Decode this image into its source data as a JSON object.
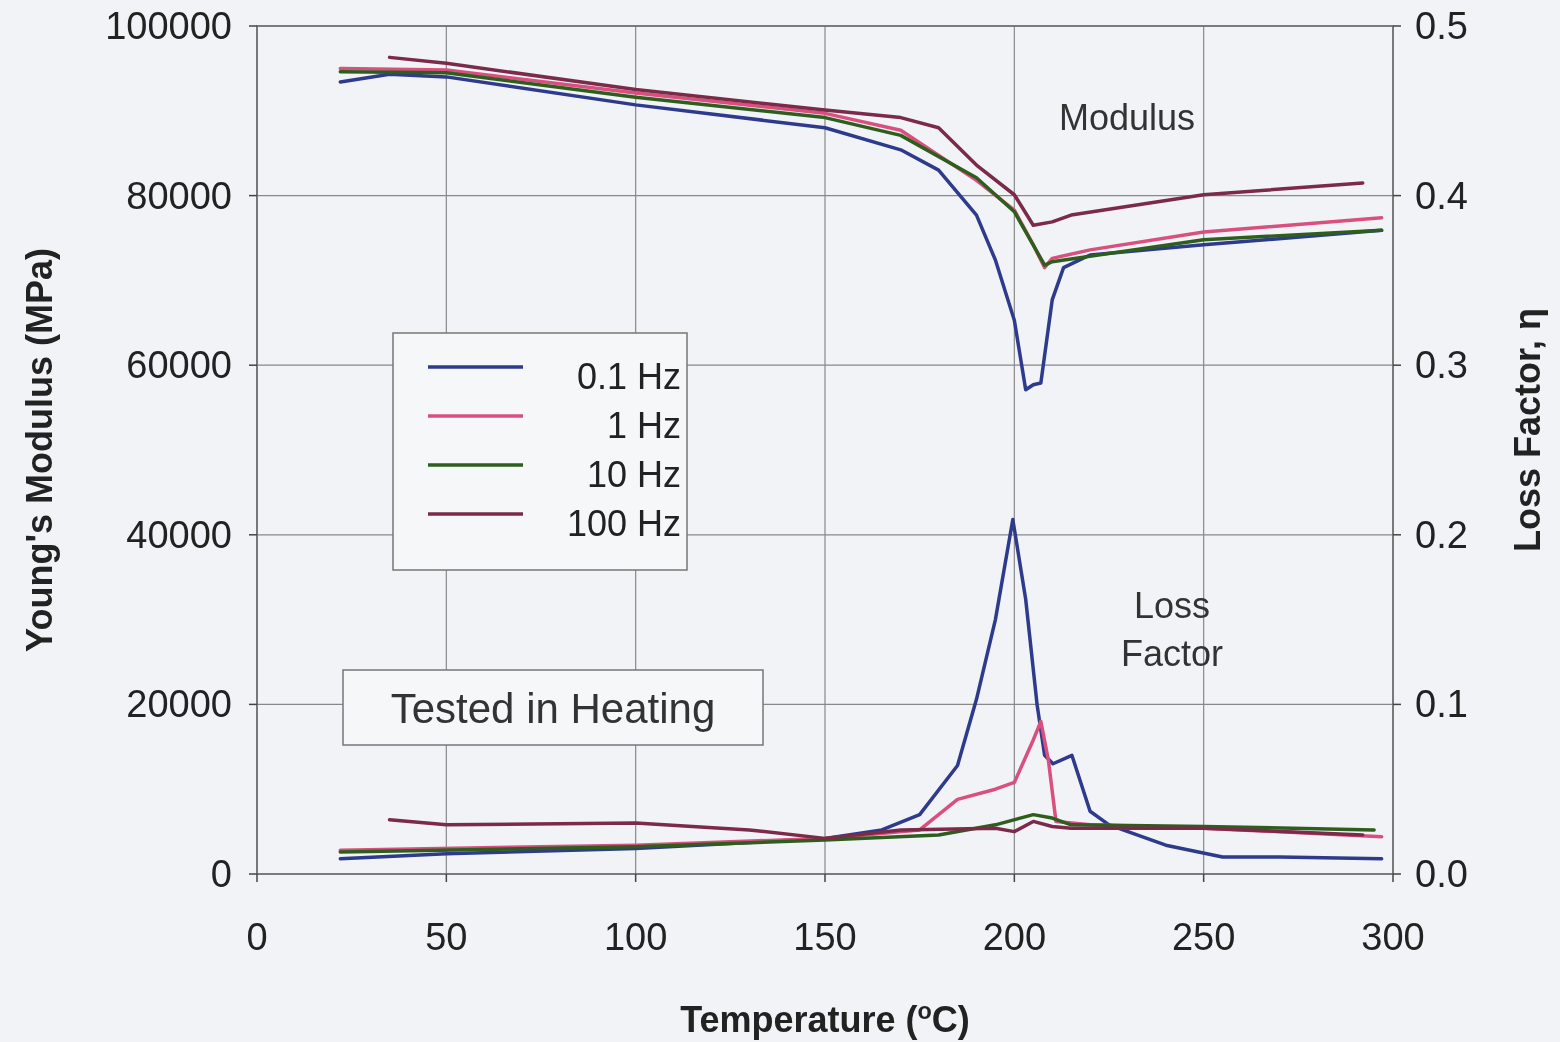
{
  "chart_data": {
    "type": "line",
    "xlabel": "Temperature ($^{o}$C)",
    "ylabel": "Young's Modulus (MPa)",
    "y2label": "Loss Factor, η",
    "xlim": [
      0,
      300
    ],
    "xticks": [
      0,
      50,
      100,
      150,
      200,
      250,
      300
    ],
    "ylim": [
      0,
      100000
    ],
    "yticks": [
      0,
      20000,
      40000,
      60000,
      80000,
      100000
    ],
    "y2lim": [
      0,
      0.5
    ],
    "y2ticks": [
      {
        "value": 0,
        "label": "0.0"
      },
      0.1,
      0.2,
      0.3,
      0.4,
      0.5
    ],
    "grid": true,
    "legend": "left",
    "line_style": "solid",
    "annotations": [
      "Modulus",
      "Loss\nFactor",
      "Tested in Heating"
    ],
    "series": [
      {
        "name": "0.1 Hz",
        "color": "#2e3a8c",
        "x": [
          22,
          35,
          50,
          100,
          150,
          170,
          180,
          190,
          195,
          200,
          203,
          205,
          207,
          210,
          213,
          220,
          250,
          297
        ],
        "values": [
          93400,
          94300,
          94000,
          90700,
          88000,
          85400,
          83000,
          77700,
          72400,
          65300,
          57100,
          57700,
          57900,
          67700,
          71500,
          73000,
          74200,
          75900
        ]
      },
      {
        "name": "1 Hz",
        "color": "#d9507f",
        "x": [
          22,
          50,
          100,
          150,
          170,
          190,
          200,
          205,
          208,
          210,
          220,
          250,
          297
        ],
        "values": [
          95000,
          94800,
          92100,
          89700,
          87700,
          81800,
          78300,
          74200,
          71500,
          72600,
          73600,
          75700,
          77400
        ]
      },
      {
        "name": "10 Hz",
        "color": "#2e5e1e",
        "x": [
          22,
          50,
          100,
          150,
          170,
          190,
          200,
          208,
          210,
          250,
          297
        ],
        "values": [
          94600,
          94500,
          91600,
          89200,
          87100,
          82100,
          78100,
          71800,
          72200,
          74800,
          75900
        ]
      },
      {
        "name": "100 Hz",
        "color": "#7b2a4a",
        "x": [
          35,
          50,
          100,
          150,
          170,
          180,
          190,
          200,
          205,
          210,
          215,
          250,
          292
        ],
        "values": [
          96300,
          95600,
          92500,
          90100,
          89200,
          88000,
          83600,
          80100,
          76500,
          76900,
          77700,
          80100,
          81500
        ]
      },
      {
        "color": "#2e3a8c",
        "axis": "y2",
        "x": [
          22,
          50,
          100,
          150,
          165,
          175,
          185,
          190,
          195,
          199.6,
          203,
          206,
          208,
          210.2,
          215.2,
          220,
          225,
          240,
          255,
          270,
          297
        ],
        "values": [
          0.009,
          0.012,
          0.015,
          0.021,
          0.026,
          0.035,
          0.064,
          0.103,
          0.15,
          0.209,
          0.162,
          0.1,
          0.07,
          0.065,
          0.07,
          0.037,
          0.029,
          0.017,
          0.01,
          0.01,
          0.009
        ]
      },
      {
        "color": "#d9507f",
        "axis": "y2",
        "x": [
          22,
          100,
          150,
          175,
          185,
          195,
          200,
          205,
          207,
          209,
          211,
          220,
          250,
          297
        ],
        "values": [
          0.014,
          0.017,
          0.021,
          0.026,
          0.044,
          0.05,
          0.054,
          0.079,
          0.09,
          0.067,
          0.031,
          0.029,
          0.027,
          0.022
        ]
      },
      {
        "color": "#2e5e1e",
        "axis": "y2",
        "x": [
          22,
          100,
          150,
          180,
          195,
          205,
          210,
          215,
          250,
          295
        ],
        "values": [
          0.013,
          0.016,
          0.02,
          0.023,
          0.029,
          0.035,
          0.033,
          0.029,
          0.028,
          0.026
        ]
      },
      {
        "color": "#7b2a4a",
        "axis": "y2",
        "x": [
          35,
          50,
          100,
          130,
          150,
          170,
          195,
          200,
          205,
          210,
          215,
          250,
          292
        ],
        "values": [
          0.032,
          0.029,
          0.03,
          0.026,
          0.021,
          0.026,
          0.027,
          0.025,
          0.031,
          0.028,
          0.027,
          0.027,
          0.023
        ]
      }
    ]
  }
}
